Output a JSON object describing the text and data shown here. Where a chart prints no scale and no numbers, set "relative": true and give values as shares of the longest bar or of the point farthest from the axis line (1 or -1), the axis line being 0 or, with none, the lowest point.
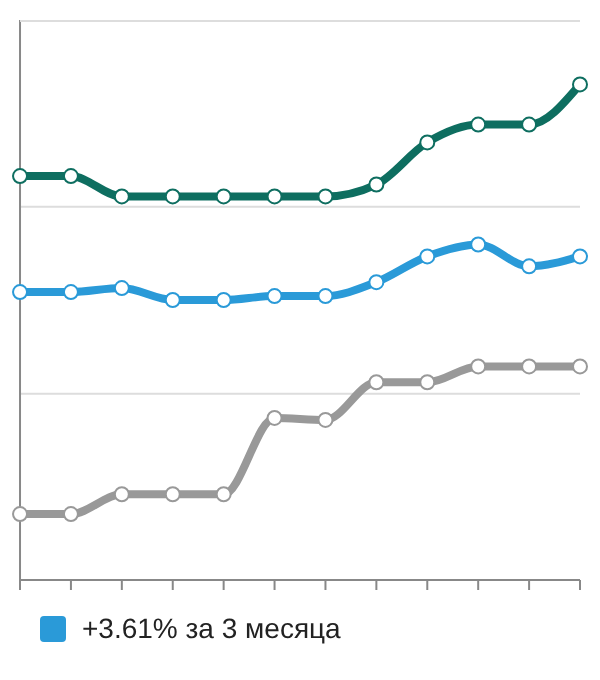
{
  "chart_data": {
    "type": "line",
    "relative": true,
    "categories": [
      null,
      null,
      null,
      null,
      null,
      null,
      null,
      null,
      null,
      null,
      null,
      null
    ],
    "series": [
      {
        "color": "#0e6e60",
        "values": [
          0.815,
          0.815,
          0.774,
          0.774,
          0.774,
          0.774,
          0.774,
          0.798,
          0.883,
          0.919,
          0.919,
          1
        ]
      },
      {
        "name": "+3.61% за 3 месяца",
        "color": "#2a9ad8",
        "values": [
          0.581,
          0.581,
          0.589,
          0.565,
          0.565,
          0.573,
          0.573,
          0.601,
          0.653,
          0.677,
          0.633,
          0.653
        ]
      },
      {
        "color": "#999999",
        "values": [
          0.133,
          0.133,
          0.173,
          0.173,
          0.173,
          0.327,
          0.323,
          0.399,
          0.399,
          0.431,
          0.431,
          0.431
        ]
      }
    ],
    "ref_lines": [
      {
        "axis": "y",
        "value": 0.376,
        "color": "#dddddd"
      },
      {
        "axis": "y",
        "value": 0.753,
        "color": "#dddddd"
      }
    ],
    "legend": "bottom",
    "marker": "circle",
    "line_style": "solid"
  }
}
